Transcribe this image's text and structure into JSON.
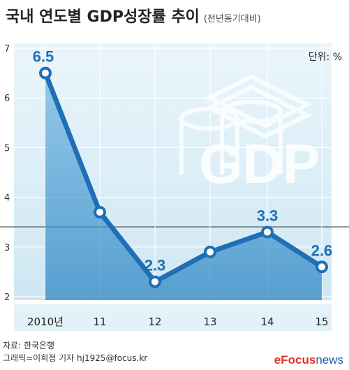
{
  "header": {
    "title": "국내 연도별 GDP성장률 추이",
    "subtitle": "(전년동기대비)"
  },
  "unit_label": "단위: %",
  "chart_data": {
    "type": "line",
    "x": [
      "2010년",
      "11",
      "12",
      "13",
      "14",
      "15"
    ],
    "values": [
      6.5,
      3.7,
      2.3,
      2.9,
      3.3,
      2.6
    ],
    "data_labels": [
      "6.5",
      "",
      "2.3",
      "",
      "3.3",
      "2.6"
    ],
    "yticks": [
      "7",
      "6",
      "5",
      "4",
      "3",
      "2"
    ],
    "ylim": [
      2,
      7
    ],
    "grid": true,
    "line_color": "#1f6fb6",
    "watermark_text": "GDP"
  },
  "footer": {
    "source": "자료: 한국은행",
    "credit": "그래픽=이희정 기자 hj1925@focus.kr",
    "brand_mark": "e",
    "brand_word": "Focus",
    "brand_suffix": "news"
  }
}
